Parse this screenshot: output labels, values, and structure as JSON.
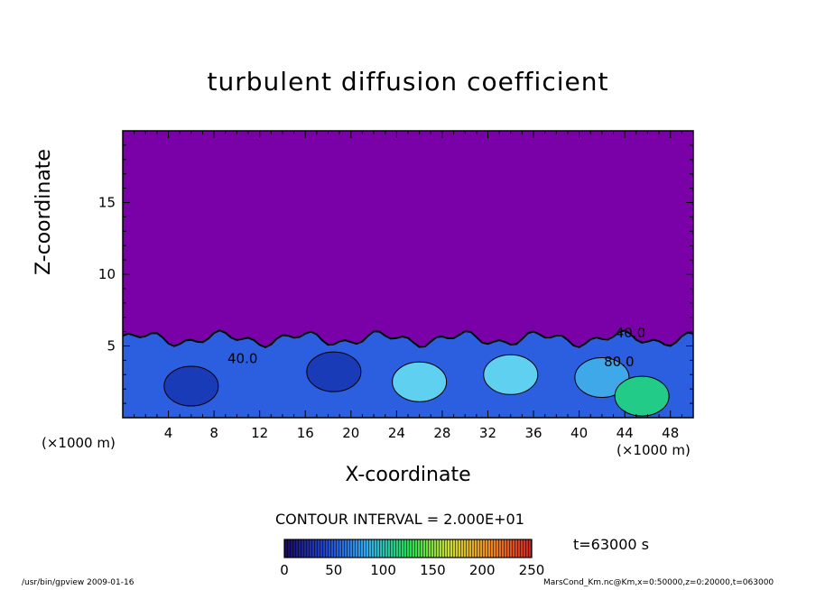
{
  "chart_data": {
    "type": "heatmap",
    "title": "turbulent diffusion coefficient",
    "xlabel": "X-coordinate",
    "ylabel": "Z-coordinate",
    "x_unit": "(×1000 m)",
    "z_unit": "(×1000 m)",
    "xlim": [
      0,
      50
    ],
    "ylim": [
      0,
      20
    ],
    "x_ticks": [
      4,
      8,
      12,
      16,
      20,
      24,
      28,
      32,
      36,
      40,
      44,
      48
    ],
    "y_ticks": [
      5,
      10,
      15
    ],
    "contour_interval": "CONTOUR INTERVAL = 2.000E+01",
    "contour_labels": [
      {
        "text": "40.0",
        "x": 10.5,
        "z": 3.8
      },
      {
        "text": "40.0",
        "x": 44.5,
        "z": 5.6
      },
      {
        "text": "80.0",
        "x": 43.5,
        "z": 3.6
      }
    ],
    "colorbar": {
      "min": 0,
      "max": 250,
      "ticks": [
        0,
        50,
        100,
        150,
        200,
        250
      ],
      "colors": [
        "#1a0a5e",
        "#2244cc",
        "#33aaee",
        "#22dd55",
        "#ccdd33",
        "#ee8822",
        "#cc2222"
      ]
    },
    "background_color": "#7a00a8",
    "boundary_layer_top_z": 5.5,
    "time": "t=63000 s"
  },
  "footer": {
    "left": "/usr/bin/gpview   2009-01-16",
    "right": "MarsCond_Km.nc@Km,x=0:50000,z=0:20000,t=063000"
  }
}
